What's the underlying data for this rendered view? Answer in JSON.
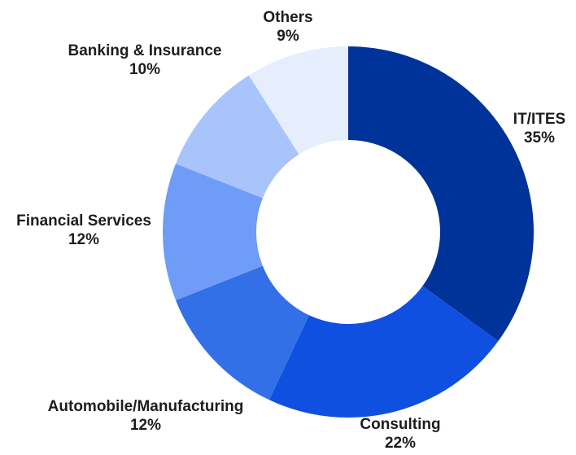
{
  "chart_data": {
    "type": "pie",
    "subtype": "donut",
    "title": "",
    "legend": "none",
    "slices": [
      {
        "label": "IT/ITES",
        "value": 35,
        "value_label": "35%",
        "color": "#003399"
      },
      {
        "label": "Consulting",
        "value": 22,
        "value_label": "22%",
        "color": "#1050e0"
      },
      {
        "label": "Automobile/Manufacturing",
        "value": 12,
        "value_label": "12%",
        "color": "#3370e8"
      },
      {
        "label": "Financial Services",
        "value": 12,
        "value_label": "12%",
        "color": "#6f9cf7"
      },
      {
        "label": "Banking & Insurance",
        "value": 10,
        "value_label": "10%",
        "color": "#a9c3fb"
      },
      {
        "label": "Others",
        "value": 9,
        "value_label": "9%",
        "color": "#e6eefd"
      }
    ]
  }
}
